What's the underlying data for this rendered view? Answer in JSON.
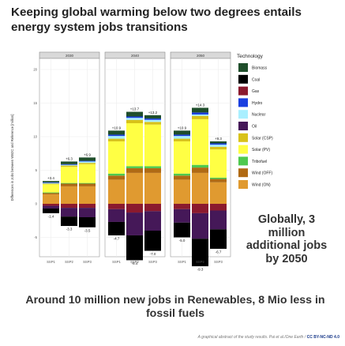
{
  "title": "Keeping global warming below two degrees entails energy system jobs transitions",
  "right_note": "Globally, 3 million additional jobs by 2050",
  "bottom_note": "Around 10 million new jobs in Renewables, 8 Mio less in fossil fuels",
  "credit_text": "A graphical abstract of the study results. Pai et al./One Earth / ",
  "credit_license": "CC BY-NC-ND 4.0",
  "chart_data": {
    "type": "bar",
    "stacked": true,
    "ylabel": "Differences in Jobs between WB2C and Reference [million]",
    "facets": [
      "2030",
      "2040",
      "2050"
    ],
    "categories": [
      "SSP1",
      "SSP2",
      "SSP3"
    ],
    "yticks": [
      -10,
      -5,
      0,
      5,
      10,
      15,
      20
    ],
    "ylim": [
      -10,
      22
    ],
    "grid": true,
    "legend": {
      "title": "Technology",
      "position": "right",
      "entries": [
        {
          "name": "Biomass",
          "color": "#1f4e2b"
        },
        {
          "name": "Coal",
          "color": "#000000"
        },
        {
          "name": "Gas",
          "color": "#8b1a2e"
        },
        {
          "name": "Hydro",
          "color": "#1a3fe0"
        },
        {
          "name": "Nuclear",
          "color": "#a9efff"
        },
        {
          "name": "Oil",
          "color": "#451858"
        },
        {
          "name": "Solar (CSP)",
          "color": "#d8c21a"
        },
        {
          "name": "Solar (PV)",
          "color": "#ffff44"
        },
        {
          "name": "Tribofuel",
          "color": "#4ec94e"
        },
        {
          "name": "Wind (OFF)",
          "color": "#b06a14"
        },
        {
          "name": "Wind (ON)",
          "color": "#e09a30"
        }
      ]
    },
    "totals_pos": [
      [
        "+3.4",
        "+6.3",
        "+6.9"
      ],
      [
        "+10.9",
        "+13.7",
        "+13.2"
      ],
      [
        "+10.9",
        "+14.3",
        "+9.3"
      ]
    ],
    "totals_neg": [
      [
        "-1.4",
        "-3.3",
        "-3.5"
      ],
      [
        "-4.7",
        "-8.4",
        "-7.0"
      ],
      [
        "-5.0",
        "-9.3",
        "-6.7"
      ]
    ],
    "series": [
      {
        "name": "Wind (ON)",
        "values": [
          [
            1.4,
            2.6,
            2.6
          ],
          [
            3.6,
            4.6,
            4.6
          ],
          [
            3.6,
            4.6,
            3.2
          ]
        ]
      },
      {
        "name": "Wind (OFF)",
        "values": [
          [
            0.2,
            0.4,
            0.4
          ],
          [
            0.6,
            0.7,
            0.7
          ],
          [
            0.6,
            0.8,
            0.5
          ]
        ]
      },
      {
        "name": "Tribofuel",
        "values": [
          [
            0.1,
            0.1,
            0.1
          ],
          [
            0.3,
            0.3,
            0.3
          ],
          [
            0.3,
            0.4,
            0.2
          ]
        ]
      },
      {
        "name": "Solar (PV)",
        "values": [
          [
            1.2,
            2.4,
            2.8
          ],
          [
            4.8,
            6.4,
            6.2
          ],
          [
            4.8,
            6.8,
            4.2
          ]
        ]
      },
      {
        "name": "Solar (CSP)",
        "values": [
          [
            0.1,
            0.2,
            0.2
          ],
          [
            0.4,
            0.5,
            0.4
          ],
          [
            0.4,
            0.5,
            0.4
          ]
        ]
      },
      {
        "name": "Nuclear",
        "values": [
          [
            0.1,
            0.1,
            0.2
          ],
          [
            0.4,
            0.3,
            0.3
          ],
          [
            0.4,
            0.2,
            0.3
          ]
        ]
      },
      {
        "name": "Hydro",
        "values": [
          [
            0.1,
            0.1,
            0.1
          ],
          [
            0.2,
            0.2,
            0.2
          ],
          [
            0.2,
            0.3,
            0.2
          ]
        ]
      },
      {
        "name": "Biomass",
        "values": [
          [
            0.2,
            0.4,
            0.5
          ],
          [
            0.6,
            0.7,
            0.5
          ],
          [
            0.6,
            0.7,
            0.3
          ]
        ]
      },
      {
        "name": "Gas",
        "values": [
          [
            -0.3,
            -0.6,
            -0.6
          ],
          [
            -0.8,
            -1.3,
            -1.1
          ],
          [
            -0.8,
            -1.4,
            -1.0
          ]
        ]
      },
      {
        "name": "Oil",
        "values": [
          [
            -0.4,
            -1.3,
            -1.4
          ],
          [
            -1.9,
            -3.4,
            -2.9
          ],
          [
            -2.0,
            -3.8,
            -2.8
          ]
        ]
      },
      {
        "name": "Coal",
        "values": [
          [
            -0.7,
            -1.4,
            -1.5
          ],
          [
            -2.0,
            -3.7,
            -3.0
          ],
          [
            -2.2,
            -4.1,
            -2.9
          ]
        ]
      }
    ]
  }
}
